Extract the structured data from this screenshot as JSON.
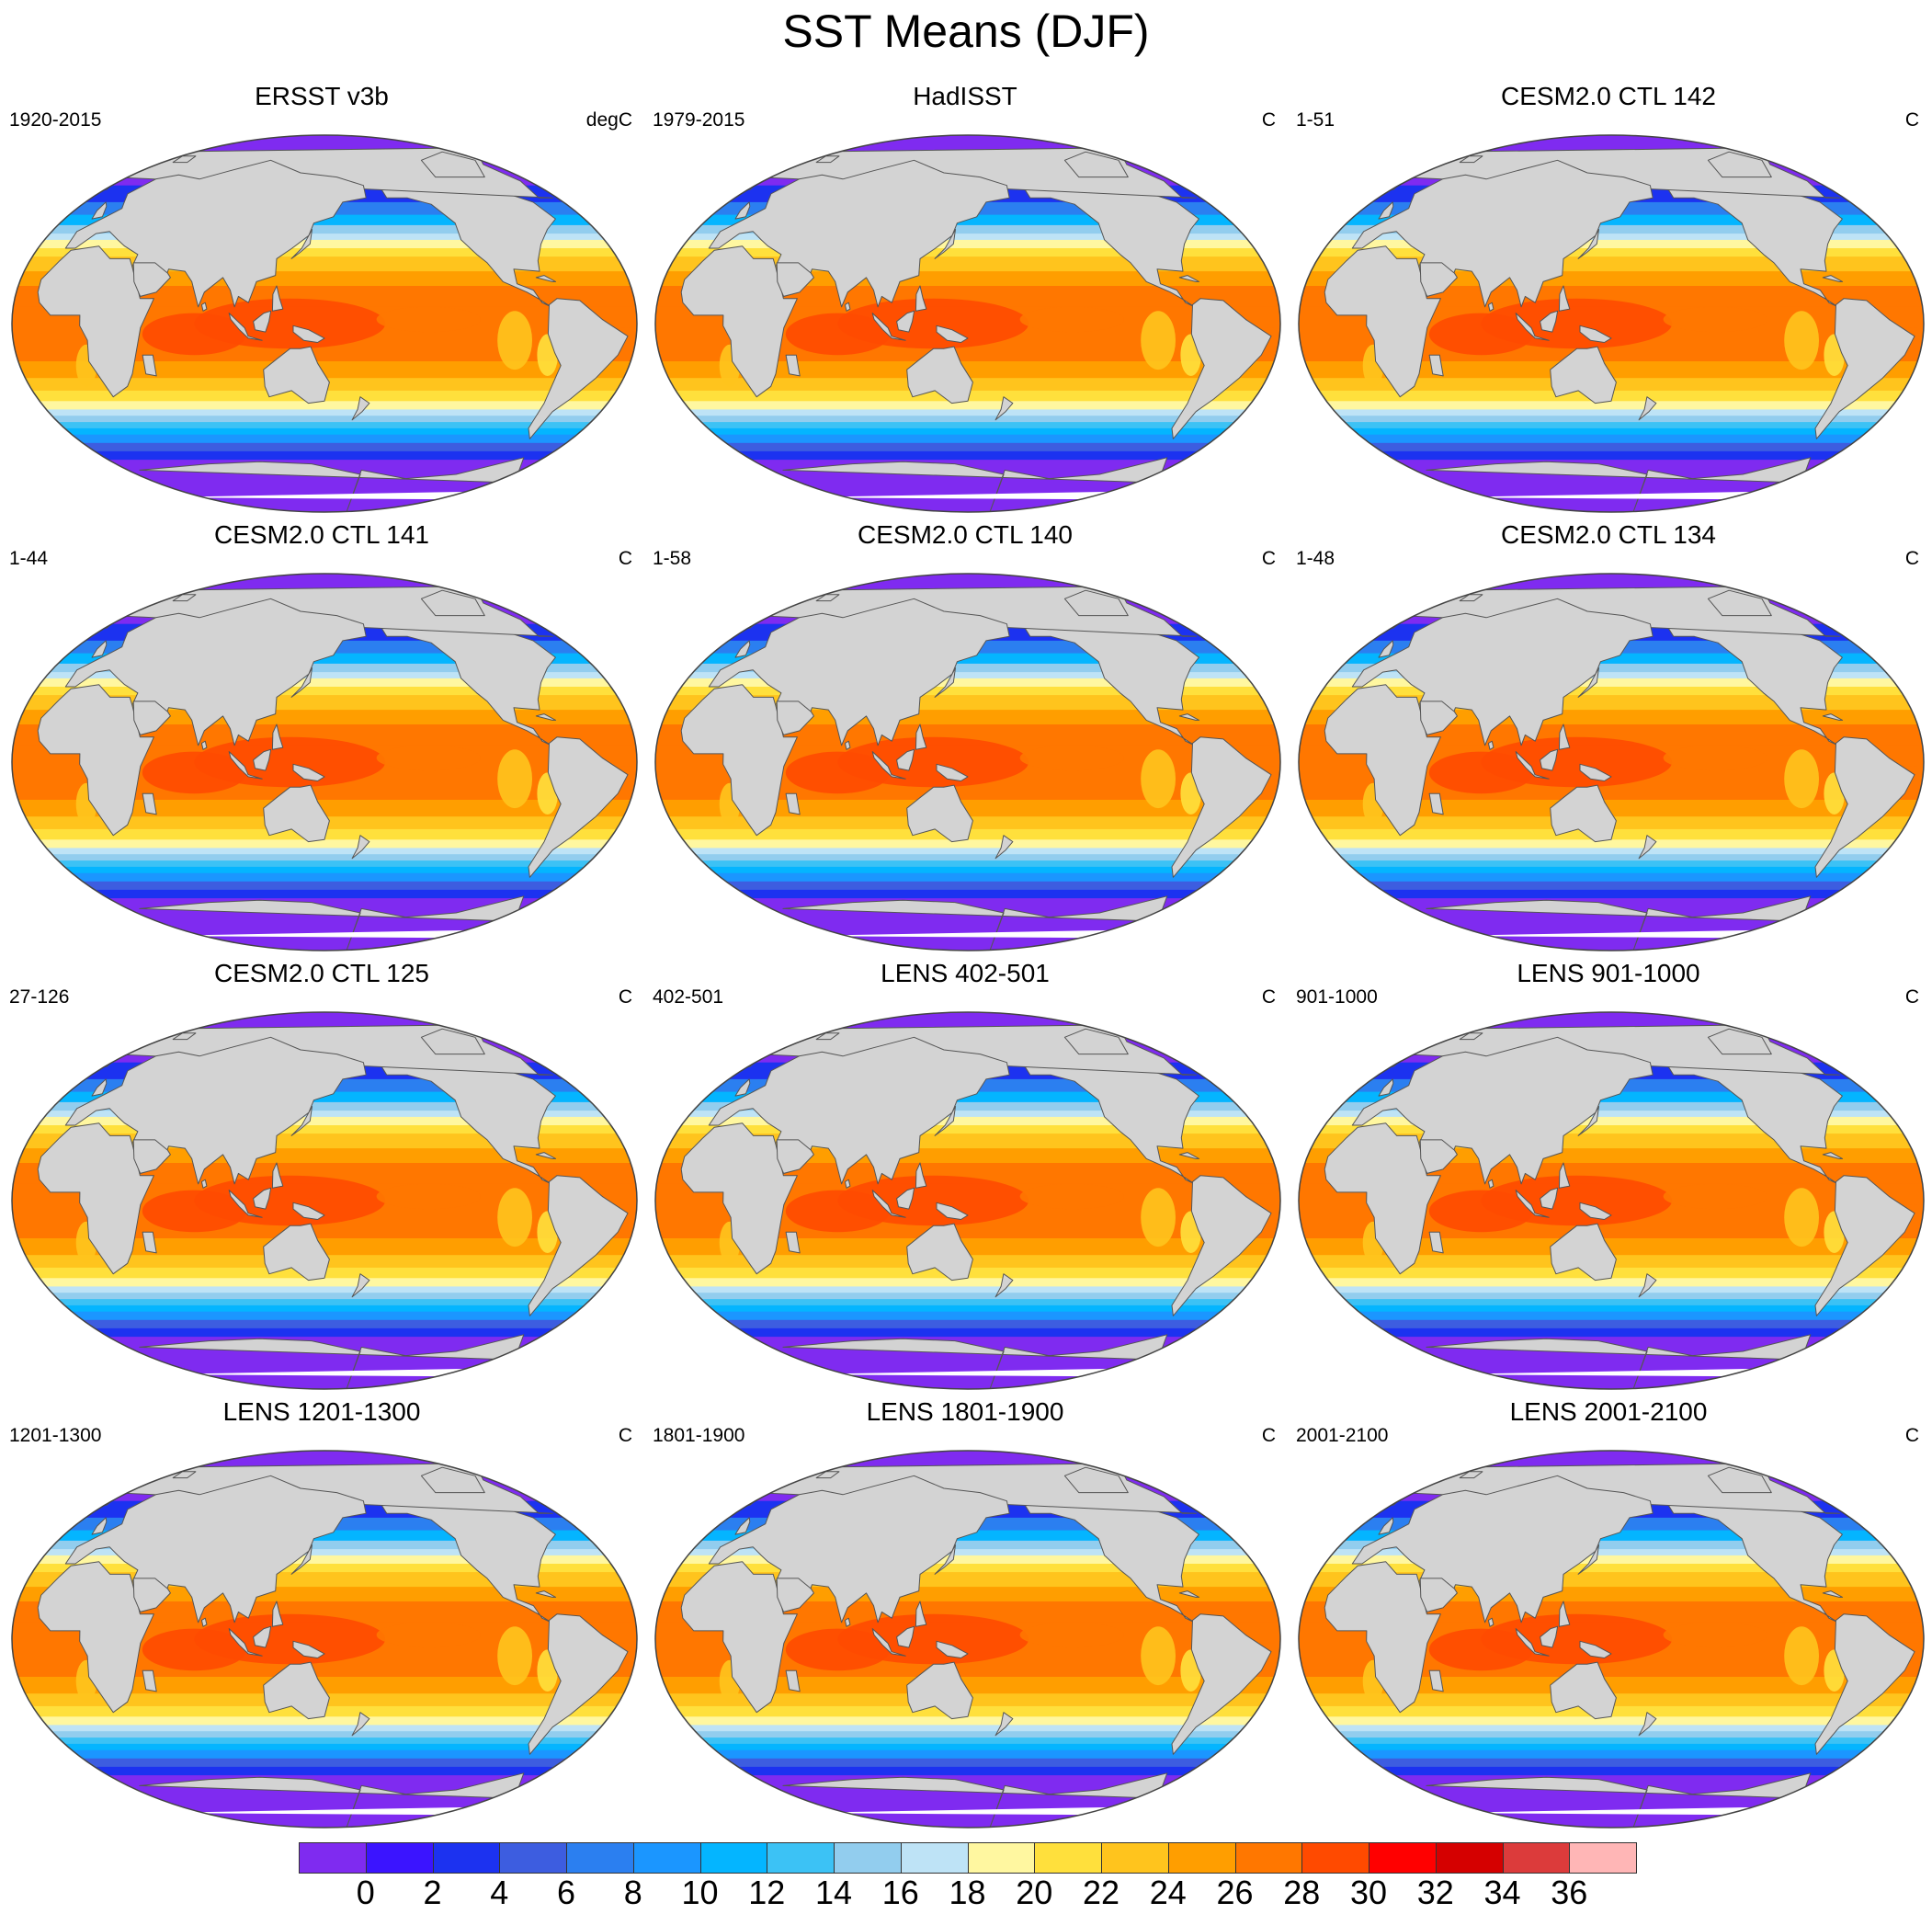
{
  "title": "SST Means (DJF)",
  "colors": {
    "land": "#d3d3d3",
    "ice": "#ffffff",
    "outline": "#555555"
  },
  "panels": [
    {
      "title": "ERSST v3b",
      "left": "1920-2015",
      "right": "degC"
    },
    {
      "title": "HadISST",
      "left": "1979-2015",
      "right": "C"
    },
    {
      "title": "CESM2.0 CTL 142",
      "left": "1-51",
      "right": "C"
    },
    {
      "title": "CESM2.0 CTL 141",
      "left": "1-44",
      "right": "C"
    },
    {
      "title": "CESM2.0 CTL 140",
      "left": "1-58",
      "right": "C"
    },
    {
      "title": "CESM2.0 CTL 134",
      "left": "1-48",
      "right": "C"
    },
    {
      "title": "CESM2.0 CTL 125",
      "left": "27-126",
      "right": "C"
    },
    {
      "title": "LENS 402-501",
      "left": "402-501",
      "right": "C"
    },
    {
      "title": "LENS 901-1000",
      "left": "901-1000",
      "right": "C"
    },
    {
      "title": "LENS 1201-1300",
      "left": "1201-1300",
      "right": "C"
    },
    {
      "title": "LENS 1801-1900",
      "left": "1801-1900",
      "right": "C"
    },
    {
      "title": "LENS 2001-2100",
      "left": "2001-2100",
      "right": "C"
    }
  ],
  "colorbar": {
    "colors": [
      "#7f2bf0",
      "#3b14ff",
      "#1c32f0",
      "#3d5de0",
      "#2b7ff0",
      "#1b96ff",
      "#04b5ff",
      "#3cc2f5",
      "#92cdee",
      "#bee3f6",
      "#fff7a0",
      "#ffe03c",
      "#ffc41d",
      "#ff9e00",
      "#ff7700",
      "#ff4a00",
      "#ff0000",
      "#d50000",
      "#dc3b3b",
      "#ffb6b6"
    ],
    "labels": [
      "0",
      "2",
      "4",
      "6",
      "8",
      "10",
      "12",
      "14",
      "16",
      "18",
      "20",
      "22",
      "24",
      "26",
      "28",
      "30",
      "32",
      "34",
      "36"
    ]
  }
}
